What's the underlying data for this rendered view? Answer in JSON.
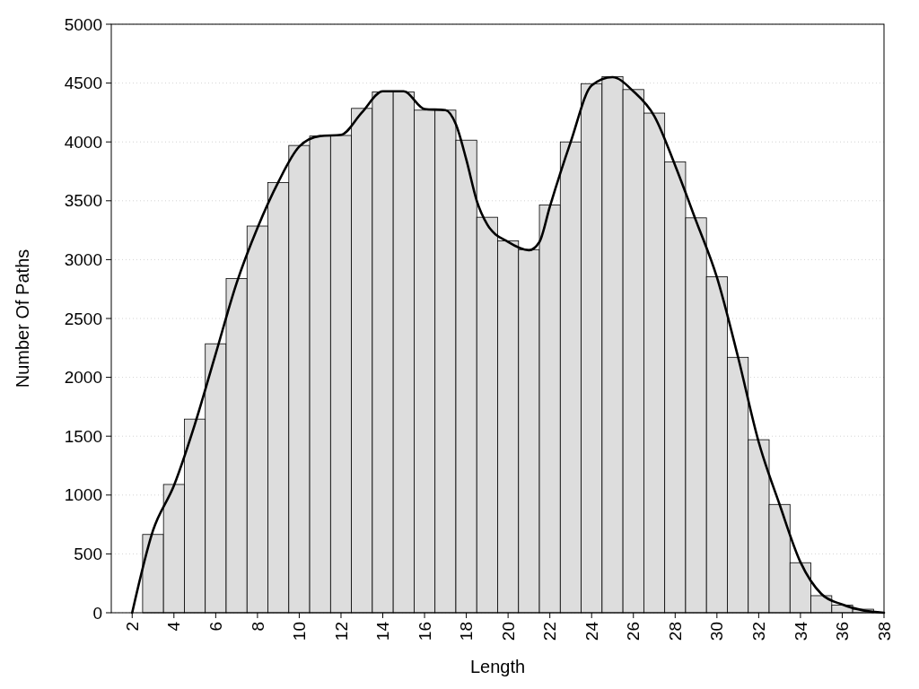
{
  "chart_data": {
    "type": "histogram",
    "xlabel": "Length",
    "ylabel": "Number Of Paths",
    "bins": [
      2.5,
      3.5,
      4.5,
      5.5,
      6.5,
      7.5,
      8.5,
      9.5,
      10.5,
      11.5,
      12.5,
      13.5,
      14.5,
      15.5,
      16.5,
      17.5,
      18.5,
      19.5,
      20.5,
      21.5,
      22.5,
      23.5,
      24.5,
      25.5,
      26.5,
      27.5,
      28.5,
      29.5,
      30.5,
      31.5,
      32.5,
      33.5,
      34.5,
      35.5,
      36.5,
      37.5
    ],
    "values": [
      665,
      1090,
      1645,
      2285,
      2840,
      3285,
      3655,
      3970,
      4050,
      4055,
      4285,
      4425,
      4425,
      4270,
      4270,
      4015,
      3360,
      3160,
      3085,
      3465,
      4000,
      4495,
      4555,
      4445,
      4245,
      3830,
      3355,
      2855,
      2170,
      1470,
      920,
      425,
      145,
      65,
      30
    ],
    "color": "#dddddd",
    "series": [
      {
        "type": "line",
        "color": "#000000",
        "x": [
          2,
          3,
          4,
          5,
          6,
          7,
          8,
          9,
          10,
          11,
          12,
          13,
          14,
          15,
          16,
          17,
          17.5,
          18,
          18.5,
          19,
          20,
          21,
          21.5,
          22,
          23,
          24,
          25,
          26,
          27,
          28,
          29,
          30,
          31,
          32,
          33,
          34,
          35,
          36,
          37,
          38
        ],
        "values": [
          0,
          700,
          1080,
          1600,
          2200,
          2800,
          3270,
          3660,
          3960,
          4050,
          4060,
          4250,
          4430,
          4430,
          4280,
          4270,
          4150,
          3850,
          3500,
          3300,
          3150,
          3080,
          3150,
          3450,
          4000,
          4480,
          4550,
          4430,
          4220,
          3800,
          3330,
          2850,
          2180,
          1450,
          920,
          430,
          160,
          70,
          20,
          0
        ]
      }
    ],
    "xlim": [
      1,
      38
    ],
    "xticks": [
      2,
      4,
      6,
      8,
      10,
      12,
      14,
      16,
      18,
      20,
      22,
      24,
      26,
      28,
      30,
      32,
      34,
      36,
      38
    ],
    "ylim": [
      0,
      5000
    ],
    "yticks": [
      0,
      500,
      1000,
      1500,
      2000,
      2500,
      3000,
      3500,
      4000,
      4500,
      5000
    ],
    "grid": "y"
  }
}
